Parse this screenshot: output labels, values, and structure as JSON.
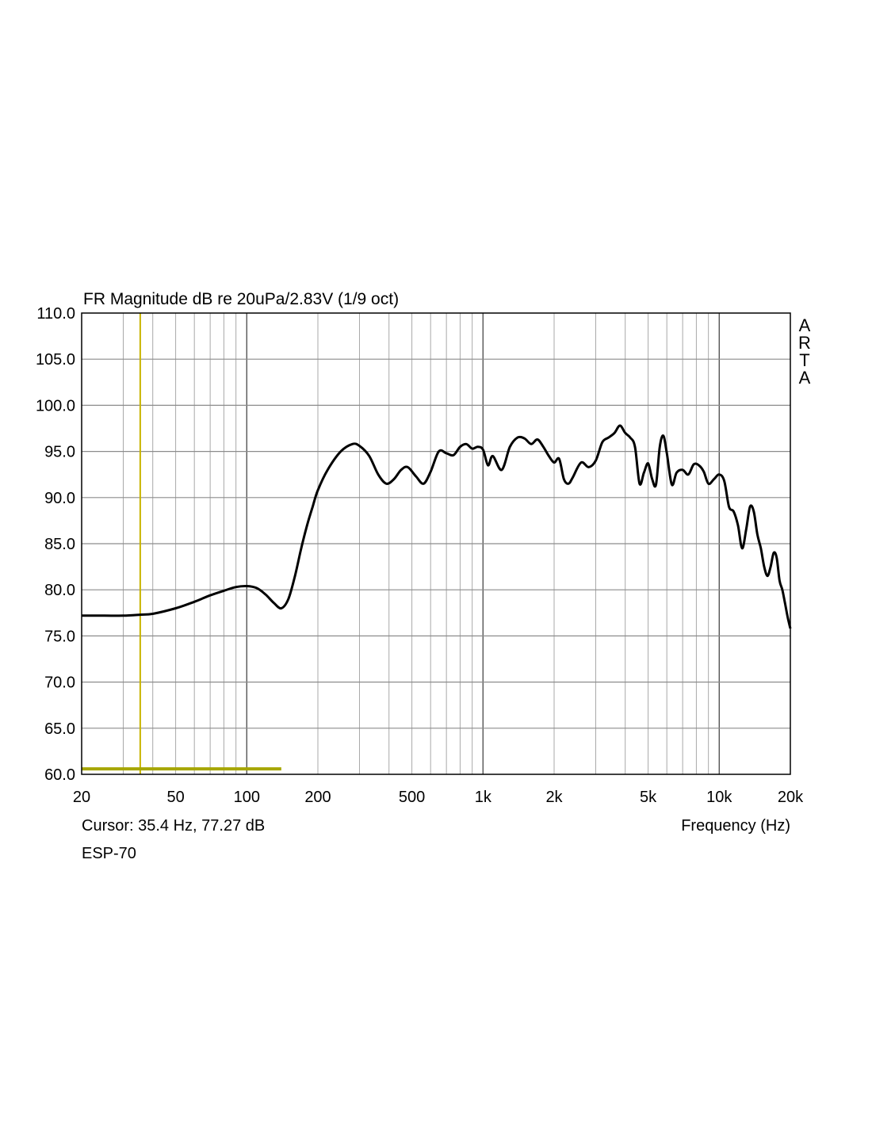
{
  "chart_data": {
    "type": "line",
    "title": "FR Magnitude dB re 20uPa/2.83V (1/9 oct)",
    "brand": "ARTA",
    "xlabel": "Frequency (Hz)",
    "xscale": "log",
    "xlim": [
      20,
      20000
    ],
    "ylim": [
      60,
      110
    ],
    "grid": true,
    "y_ticks": [
      "110.0",
      "105.0",
      "100.0",
      "95.0",
      "90.0",
      "85.0",
      "80.0",
      "75.0",
      "70.0",
      "65.0",
      "60.0"
    ],
    "x_ticks": [
      {
        "value": 20,
        "label": "20"
      },
      {
        "value": 50,
        "label": "50"
      },
      {
        "value": 100,
        "label": "100"
      },
      {
        "value": 200,
        "label": "200"
      },
      {
        "value": 500,
        "label": "500"
      },
      {
        "value": 1000,
        "label": "1k"
      },
      {
        "value": 2000,
        "label": "2k"
      },
      {
        "value": 5000,
        "label": "5k"
      },
      {
        "value": 10000,
        "label": "10k"
      },
      {
        "value": 20000,
        "label": "20k"
      }
    ],
    "cursor": {
      "x": 35.4,
      "y": 77.27,
      "label": "Cursor: 35.4 Hz, 77.27 dB"
    },
    "marker_range": {
      "x": [
        20,
        140
      ],
      "y": 60.5
    },
    "series": [
      {
        "name": "",
        "color": "#000000",
        "x": [
          20,
          25,
          30,
          35.4,
          40,
          50,
          60,
          70,
          80,
          90,
          100,
          110,
          120,
          130,
          140,
          150,
          160,
          170,
          180,
          190,
          200,
          220,
          250,
          280,
          300,
          330,
          360,
          390,
          420,
          450,
          480,
          520,
          560,
          600,
          650,
          700,
          750,
          800,
          850,
          900,
          950,
          1000,
          1050,
          1100,
          1200,
          1300,
          1400,
          1500,
          1600,
          1700,
          1800,
          1900,
          2000,
          2100,
          2200,
          2300,
          2400,
          2600,
          2800,
          3000,
          3200,
          3400,
          3600,
          3800,
          4000,
          4200,
          4400,
          4600,
          4800,
          5000,
          5200,
          5400,
          5600,
          5800,
          6000,
          6300,
          6600,
          7000,
          7400,
          7800,
          8200,
          8600,
          9000,
          9500,
          10000,
          10500,
          11000,
          11500,
          12000,
          12500,
          13000,
          13500,
          14000,
          14500,
          15000,
          15500,
          16000,
          16500,
          17000,
          17500,
          18000,
          18500,
          19000,
          19500,
          20000
        ],
        "y": [
          77.2,
          77.2,
          77.2,
          77.3,
          77.4,
          78.0,
          78.7,
          79.4,
          79.9,
          80.3,
          80.4,
          80.2,
          79.5,
          78.6,
          78.0,
          79.0,
          81.5,
          84.5,
          87.0,
          89.0,
          90.8,
          93.0,
          95.0,
          95.8,
          95.6,
          94.5,
          92.5,
          91.5,
          92.0,
          93.0,
          93.3,
          92.3,
          91.5,
          92.8,
          95.0,
          94.8,
          94.6,
          95.5,
          95.8,
          95.3,
          95.5,
          95.2,
          93.5,
          94.5,
          93.0,
          95.5,
          96.5,
          96.4,
          95.8,
          96.3,
          95.5,
          94.5,
          93.8,
          94.2,
          92.0,
          91.5,
          92.2,
          93.8,
          93.3,
          94.0,
          96.0,
          96.5,
          97.0,
          97.8,
          97.0,
          96.5,
          95.5,
          91.5,
          92.7,
          93.7,
          92.0,
          91.4,
          95.5,
          96.7,
          94.8,
          91.4,
          92.7,
          93.0,
          92.5,
          93.6,
          93.5,
          92.8,
          91.5,
          92.0,
          92.5,
          91.8,
          89.0,
          88.5,
          87.0,
          84.5,
          86.5,
          89.0,
          88.5,
          86.0,
          84.5,
          82.5,
          81.5,
          82.5,
          84.0,
          83.5,
          81.0,
          80.0,
          78.5,
          77.0,
          75.8
        ]
      }
    ]
  },
  "footer": {
    "cursor_text": "Cursor: 35.4 Hz, 77.27 dB",
    "xlabel": "Frequency (Hz)",
    "device": "ESP-70"
  }
}
